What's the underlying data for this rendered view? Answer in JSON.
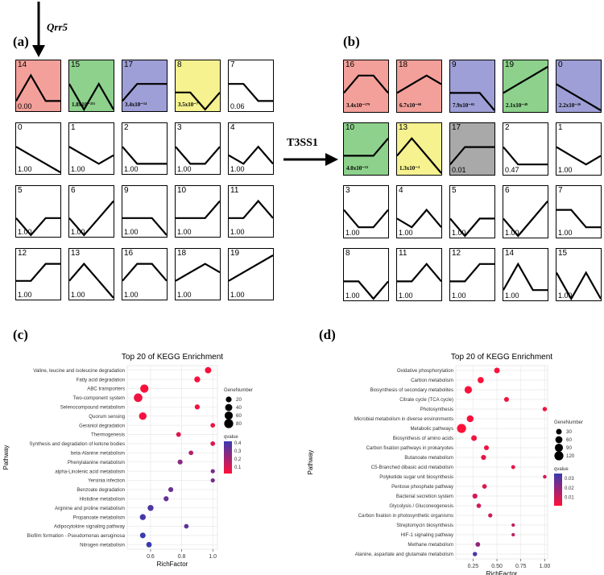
{
  "panel_labels": {
    "a": "(a)",
    "b": "(b)",
    "c": "(c)",
    "d": "(d)"
  },
  "arrow_label_a": "Qrr5",
  "arrow_label_b": "T3SS1",
  "colors": {
    "red": "#F4A09A",
    "green": "#8DD18C",
    "blue": "#9E9FD6",
    "yellow": "#F5F28F",
    "gray": "#A9A9A9",
    "white": "#FFFFFF"
  },
  "chart_data": [
    {
      "type": "table",
      "panel": "a",
      "profiles": [
        {
          "id": "14",
          "pvalue": "0.00",
          "color": "red",
          "shape": [
            2,
            5,
            2,
            2
          ]
        },
        {
          "id": "15",
          "pvalue": "1.8x10⁻²⁵¹",
          "pvalue_style": "small",
          "color": "green",
          "shape": [
            4,
            1,
            4,
            1
          ]
        },
        {
          "id": "17",
          "pvalue": "3.4x10⁻¹⁴",
          "pvalue_style": "small",
          "color": "blue",
          "shape": [
            2,
            4,
            4,
            4
          ]
        },
        {
          "id": "8",
          "pvalue": "3.5x10⁻⁷",
          "pvalue_style": "small",
          "color": "yellow",
          "shape": [
            3,
            3,
            1,
            3
          ]
        },
        {
          "id": "7",
          "pvalue": "0.06",
          "color": "white",
          "shape": [
            4,
            4,
            2,
            2
          ]
        },
        {
          "id": "0",
          "pvalue": "1.00",
          "color": "white",
          "shape": [
            4,
            3,
            2,
            1
          ]
        },
        {
          "id": "1",
          "pvalue": "1.00",
          "color": "white",
          "shape": [
            4,
            3,
            2,
            3
          ]
        },
        {
          "id": "2",
          "pvalue": "1.00",
          "color": "white",
          "shape": [
            4,
            2,
            2,
            2
          ]
        },
        {
          "id": "3",
          "pvalue": "1.00",
          "color": "white",
          "shape": [
            4,
            2,
            2,
            4
          ]
        },
        {
          "id": "4",
          "pvalue": "1.00",
          "color": "white",
          "shape": [
            3,
            2,
            4,
            2
          ]
        },
        {
          "id": "5",
          "pvalue": "1.00",
          "color": "white",
          "shape": [
            3,
            1,
            3,
            3
          ]
        },
        {
          "id": "6",
          "pvalue": "1.00",
          "color": "white",
          "shape": [
            3,
            1,
            3,
            5
          ]
        },
        {
          "id": "9",
          "pvalue": "1.00",
          "color": "white",
          "shape": [
            3,
            3,
            3,
            1
          ]
        },
        {
          "id": "10",
          "pvalue": "1.00",
          "color": "white",
          "shape": [
            3,
            3,
            3,
            5
          ]
        },
        {
          "id": "11",
          "pvalue": "1.00",
          "color": "white",
          "shape": [
            3,
            3,
            5,
            3
          ]
        },
        {
          "id": "12",
          "pvalue": "1.00",
          "color": "white",
          "shape": [
            3,
            3,
            5,
            5
          ]
        },
        {
          "id": "13",
          "pvalue": "1.00",
          "color": "white",
          "shape": [
            3,
            5,
            3,
            1
          ]
        },
        {
          "id": "16",
          "pvalue": "1.00",
          "color": "white",
          "shape": [
            3,
            5,
            5,
            3
          ]
        },
        {
          "id": "18",
          "pvalue": "1.00",
          "color": "white",
          "shape": [
            3,
            4,
            5,
            4
          ]
        },
        {
          "id": "19",
          "pvalue": "1.00",
          "color": "white",
          "shape": [
            3,
            4,
            5,
            6
          ]
        }
      ]
    },
    {
      "type": "table",
      "panel": "b",
      "profiles": [
        {
          "id": "16",
          "pvalue": "3.4x10⁻¹⁷⁹",
          "pvalue_style": "small",
          "color": "red",
          "shape": [
            3,
            5,
            5,
            3
          ]
        },
        {
          "id": "18",
          "pvalue": "6.7x10⁻⁶⁸",
          "pvalue_style": "small",
          "color": "red",
          "shape": [
            3,
            4,
            5,
            4
          ]
        },
        {
          "id": "9",
          "pvalue": "7.9x10⁻⁶⁵",
          "pvalue_style": "small",
          "color": "blue",
          "shape": [
            3,
            3,
            3,
            1
          ]
        },
        {
          "id": "19",
          "pvalue": "2.1x10⁻⁴⁹",
          "pvalue_style": "small",
          "color": "green",
          "shape": [
            3,
            4,
            5,
            6
          ]
        },
        {
          "id": "0",
          "pvalue": "2.2x10⁻²⁶",
          "pvalue_style": "small",
          "color": "blue",
          "shape": [
            4,
            3,
            2,
            1
          ]
        },
        {
          "id": "10",
          "pvalue": "4.0x10⁻¹²",
          "pvalue_style": "small",
          "color": "green",
          "shape": [
            3,
            3,
            3,
            5
          ]
        },
        {
          "id": "13",
          "pvalue": "1.3x10⁻³",
          "pvalue_style": "small",
          "color": "yellow",
          "shape": [
            3,
            5,
            3,
            1
          ]
        },
        {
          "id": "17",
          "pvalue": "0.01",
          "color": "gray",
          "shape": [
            2,
            4,
            4,
            4
          ]
        },
        {
          "id": "2",
          "pvalue": "0.47",
          "color": "white",
          "shape": [
            4,
            2,
            2,
            2
          ]
        },
        {
          "id": "1",
          "pvalue": "1.00",
          "color": "white",
          "shape": [
            4,
            3,
            2,
            3
          ]
        },
        {
          "id": "3",
          "pvalue": "1.00",
          "color": "white",
          "shape": [
            4,
            2,
            2,
            4
          ]
        },
        {
          "id": "4",
          "pvalue": "1.00",
          "color": "white",
          "shape": [
            3,
            2,
            4,
            2
          ]
        },
        {
          "id": "5",
          "pvalue": "1.00",
          "color": "white",
          "shape": [
            3,
            1,
            3,
            3
          ]
        },
        {
          "id": "6",
          "pvalue": "1.00",
          "color": "white",
          "shape": [
            3,
            1,
            3,
            5
          ]
        },
        {
          "id": "7",
          "pvalue": "1.00",
          "color": "white",
          "shape": [
            4,
            4,
            2,
            2
          ]
        },
        {
          "id": "8",
          "pvalue": "1.00",
          "color": "white",
          "shape": [
            3,
            3,
            1,
            3
          ]
        },
        {
          "id": "11",
          "pvalue": "1.00",
          "color": "white",
          "shape": [
            3,
            3,
            5,
            3
          ]
        },
        {
          "id": "12",
          "pvalue": "1.00",
          "color": "white",
          "shape": [
            3,
            3,
            5,
            5
          ]
        },
        {
          "id": "14",
          "pvalue": "1.00",
          "color": "white",
          "shape": [
            2,
            5,
            2,
            2
          ]
        },
        {
          "id": "15",
          "pvalue": "1.00",
          "color": "white",
          "shape": [
            4,
            1,
            4,
            1
          ]
        }
      ]
    },
    {
      "type": "scatter",
      "panel": "c",
      "title": "Top 20 of KEGG Enrichment",
      "xlabel": "RichFactor",
      "ylabel": "Pathway",
      "xlim": [
        0.45,
        1.03
      ],
      "xticks": [
        0.6,
        0.8,
        1.0
      ],
      "xtick_labels": [
        "0.6",
        "0.8",
        "1.0"
      ],
      "size_legend": {
        "title": "GeneNumber",
        "values": [
          20,
          40,
          60,
          80
        ],
        "labels": [
          "20",
          "40",
          "60",
          "80"
        ]
      },
      "color_legend": {
        "title": "qvalue",
        "range": [
          0.02,
          0.42
        ],
        "ticks": [
          0.4,
          0.3,
          0.2,
          0.1
        ],
        "tick_labels": [
          "0.4",
          "0.3",
          "0.2",
          "0.1"
        ],
        "low_color": "#FF1038",
        "high_color": "#3A3AB0"
      },
      "pathways": [
        "Valine, leucine and isoleucine degradation",
        "Fatty acid degradation",
        "ABC transporters",
        "Two-component system",
        "Selenocompound metabolism",
        "Quorum sensing",
        "Geraniol degradation",
        "Thermogenesis",
        "Synthesis and degradation of ketone bodies",
        "beta-Alanine metabolism",
        "Phenylalanine metabolism",
        "alpha-Linolenic acid metabolism",
        "Yersinia infection",
        "Benzoate degradation",
        "Histidine metabolism",
        "Arginine and proline metabolism",
        "Propanoate metabolism",
        "Adipocytokine signaling pathway",
        "Biofilm formation - Pseudomonas aeruginosa",
        "Nitrogen metabolism"
      ],
      "richfactor": [
        0.97,
        0.9,
        0.56,
        0.52,
        0.9,
        0.55,
        1.0,
        0.78,
        1.0,
        0.86,
        0.79,
        1.0,
        1.0,
        0.73,
        0.7,
        0.6,
        0.55,
        0.83,
        0.55,
        0.59
      ],
      "genenumber": [
        28,
        22,
        62,
        70,
        12,
        48,
        8,
        9,
        8,
        8,
        11,
        5,
        5,
        11,
        12,
        22,
        22,
        8,
        18,
        16
      ],
      "qvalue": [
        0.03,
        0.04,
        0.03,
        0.05,
        0.05,
        0.04,
        0.06,
        0.09,
        0.09,
        0.18,
        0.26,
        0.3,
        0.3,
        0.32,
        0.33,
        0.38,
        0.4,
        0.35,
        0.42,
        0.44
      ]
    },
    {
      "type": "scatter",
      "panel": "d",
      "title": "Top 20 of KEGG Enrichment",
      "xlabel": "RichFactor",
      "ylabel": "Pathway",
      "xlim": [
        0.07,
        1.03
      ],
      "xticks": [
        0.25,
        0.5,
        0.75,
        1.0
      ],
      "xtick_labels": [
        "0.25",
        "0.50",
        "0.75",
        "1.00"
      ],
      "size_legend": {
        "title": "GeneNumber",
        "values": [
          30,
          60,
          90,
          120
        ],
        "labels": [
          "30",
          "60",
          "90",
          "120"
        ]
      },
      "color_legend": {
        "title": "qvalue",
        "range": [
          0.001,
          0.035
        ],
        "ticks": [
          0.03,
          0.02,
          0.01
        ],
        "tick_labels": [
          "0.03",
          "0.02",
          "0.01"
        ],
        "low_color": "#FF1038",
        "high_color": "#3A3AB0"
      },
      "pathways": [
        "Oxidative phosphorylation",
        "Carbon metabolism",
        "Biosynthesis of secondary metabolites",
        "Citrate cycle (TCA cycle)",
        "Photosynthesis",
        "Microbial metabolism in diverse environments",
        "Metabolic pathways",
        "Biosynthesis of amino acids",
        "Carbon fixation pathways in prokaryotes",
        "Butanoate metabolism",
        "C5-Branched dibasic acid metabolism",
        "Polyketide sugar unit biosynthesis",
        "Pentose phosphate pathway",
        "Bacterial secretion system",
        "Glycolysis / Gluconeogenesis",
        "Carbon fixation in photosynthetic organisms",
        "Streptomycin biosynthesis",
        "HIF-1 signaling pathway",
        "Methane metabolism",
        "Alanine, aspartate and glutamate metabolism"
      ],
      "richfactor": [
        0.5,
        0.33,
        0.2,
        0.6,
        1.0,
        0.22,
        0.13,
        0.26,
        0.39,
        0.36,
        0.67,
        1.0,
        0.37,
        0.27,
        0.31,
        0.43,
        0.67,
        0.67,
        0.3,
        0.27
      ],
      "genenumber": [
        30,
        40,
        70,
        18,
        12,
        55,
        120,
        30,
        18,
        20,
        8,
        5,
        15,
        20,
        14,
        10,
        4,
        4,
        16,
        12
      ],
      "qvalue": [
        0.002,
        0.002,
        0.002,
        0.003,
        0.003,
        0.002,
        0.001,
        0.003,
        0.004,
        0.005,
        0.006,
        0.008,
        0.007,
        0.008,
        0.009,
        0.01,
        0.012,
        0.012,
        0.02,
        0.032
      ]
    }
  ]
}
